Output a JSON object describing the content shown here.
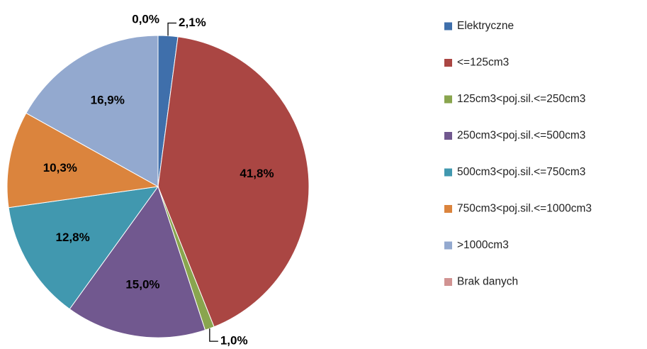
{
  "chart_data": {
    "type": "pie",
    "categories": [
      "Elektryczne",
      "<=125cm3",
      "125cm3<poj.sil.<=250cm3",
      "250cm3<poj.sil.<=500cm3",
      "500cm3<poj.sil.<=750cm3",
      "750cm3<poj.sil.<=1000cm3",
      ">1000cm3",
      "Brak danych"
    ],
    "values": [
      2.1,
      41.8,
      1.0,
      15.0,
      12.8,
      10.3,
      16.9,
      0.0
    ],
    "value_labels": [
      "2,1%",
      "41,8%",
      "1,0%",
      "15,0%",
      "12,8%",
      "10,3%",
      "16,9%",
      "0,0%"
    ],
    "colors": [
      "#3f6fab",
      "#aa4643",
      "#89a54e",
      "#71588f",
      "#4198af",
      "#db843d",
      "#93a9cf",
      "#d19392"
    ],
    "legend": "right"
  }
}
